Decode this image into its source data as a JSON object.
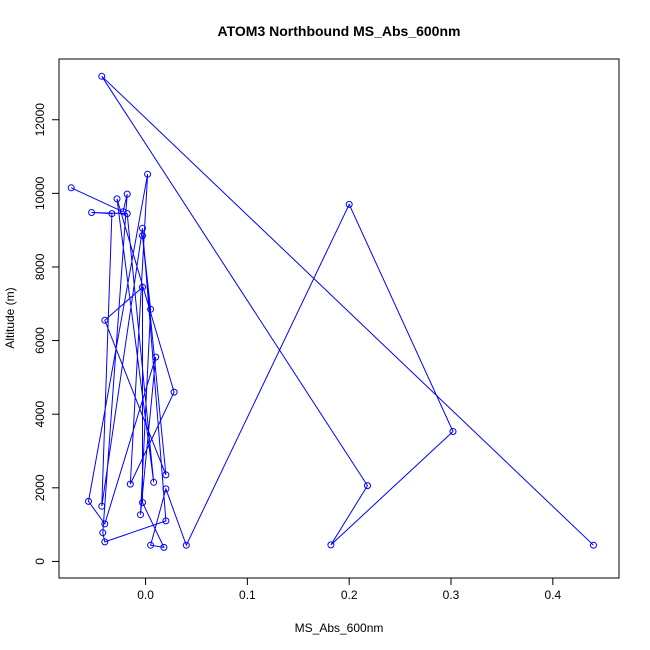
{
  "chart_data": {
    "type": "line",
    "title": "ATOM3 Northbound MS_Abs_600nm",
    "xlabel": "MS_Abs_600nm",
    "ylabel": "Altitude (m)",
    "xlim": [
      -0.085,
      0.465
    ],
    "ylim": [
      -450,
      13650
    ],
    "x_ticks": [
      0.0,
      0.1,
      0.2,
      0.3,
      0.4
    ],
    "x_tick_labels": [
      "0.0",
      "0.1",
      "0.2",
      "0.3",
      "0.4"
    ],
    "y_ticks": [
      0,
      2000,
      4000,
      6000,
      8000,
      10000,
      12000
    ],
    "y_tick_labels": [
      "0",
      "2000",
      "4000",
      "6000",
      "8000",
      "10000",
      "12000"
    ],
    "grid": false,
    "legend": "none",
    "series_color": "#0000ff",
    "marker": "open-circle",
    "series": [
      {
        "x": [
          -0.073,
          -0.022,
          -0.018,
          -0.042,
          -0.04,
          0.02,
          -0.003,
          -0.043,
          -0.033,
          -0.053,
          -0.018,
          0.008,
          -0.028,
          0.028,
          -0.015,
          0.002,
          -0.056,
          -0.04,
          0.01,
          -0.005,
          0.005,
          -0.003,
          0.02,
          -0.04,
          -0.003,
          -0.003,
          0.018,
          0.005,
          0.02,
          0.04,
          0.2,
          0.302,
          0.182,
          0.218,
          -0.043,
          0.44
        ],
        "y": [
          10150,
          9500,
          9980,
          780,
          530,
          1100,
          9050,
          1500,
          9450,
          9480,
          9450,
          2150,
          9850,
          4600,
          2100,
          10520,
          1630,
          1020,
          5550,
          1270,
          6850,
          8850,
          2350,
          6550,
          7450,
          1600,
          380,
          440,
          1970,
          440,
          9700,
          3530,
          450,
          2060,
          13180,
          440
        ]
      }
    ]
  }
}
